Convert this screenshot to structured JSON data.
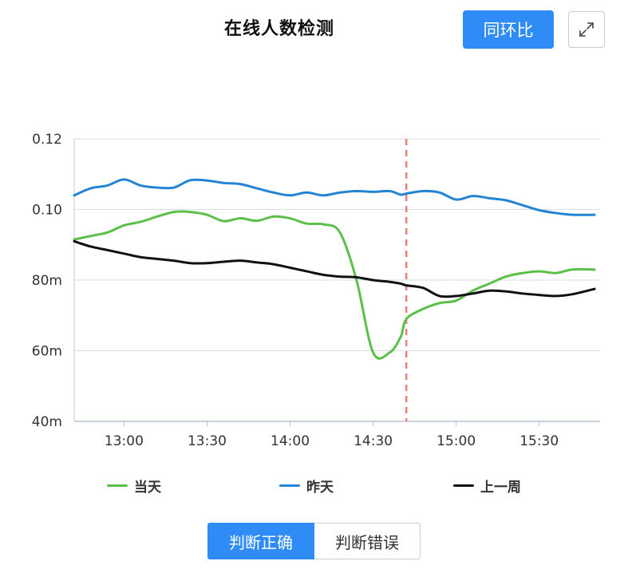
{
  "header": {
    "title": "在线人数检测",
    "compare_label": "同环比"
  },
  "colors": {
    "accent": "#2f8cf7"
  },
  "legend": [
    {
      "label": "当天",
      "color": "#5cbf4a"
    },
    {
      "label": "昨天",
      "color": "#2484d4"
    },
    {
      "label": "上一周",
      "color": "#111111"
    }
  ],
  "toggle": {
    "active_label": "判断正确",
    "inactive_label": "判断错误"
  },
  "chart_data": {
    "type": "line",
    "title": "",
    "xlabel": "",
    "ylabel": "",
    "x_tick_labels": [
      "13:00",
      "13:30",
      "14:00",
      "14:30",
      "15:00",
      "15:30"
    ],
    "y_tick_labels": [
      "0.12",
      "0.10",
      "80m",
      "60m",
      "40m"
    ],
    "x_ticks_minutes": [
      780,
      810,
      840,
      870,
      900,
      930
    ],
    "y_ticks": [
      0.12,
      0.1,
      0.08,
      0.06,
      0.04
    ],
    "xlim": [
      "12:42",
      "15:52"
    ],
    "ylim": [
      0.04,
      0.12
    ],
    "grid": "horizontal",
    "legend_position": "bottom",
    "marker_line": {
      "x": "14:42",
      "color": "#e8827a",
      "style": "dashed"
    },
    "x": [
      "12:42",
      "12:48",
      "12:54",
      "13:00",
      "13:06",
      "13:12",
      "13:18",
      "13:24",
      "13:30",
      "13:36",
      "13:42",
      "13:48",
      "13:54",
      "14:00",
      "14:06",
      "14:12",
      "14:18",
      "14:24",
      "14:30",
      "14:36",
      "14:40",
      "14:42",
      "14:48",
      "14:54",
      "15:00",
      "15:06",
      "15:12",
      "15:18",
      "15:24",
      "15:30",
      "15:36",
      "15:42",
      "15:50"
    ],
    "series": [
      {
        "name": "当天",
        "color": "#5cbf4a",
        "values": [
          0.0915,
          0.0925,
          0.0935,
          0.0955,
          0.0965,
          0.098,
          0.0993,
          0.0993,
          0.0985,
          0.0967,
          0.0975,
          0.0968,
          0.098,
          0.0975,
          0.096,
          0.0958,
          0.0935,
          0.08,
          0.0595,
          0.0595,
          0.064,
          0.069,
          0.0718,
          0.0735,
          0.0742,
          0.077,
          0.079,
          0.081,
          0.082,
          0.0825,
          0.082,
          0.083,
          0.083
        ]
      },
      {
        "name": "昨天",
        "color": "#2484d4",
        "values": [
          0.104,
          0.106,
          0.1068,
          0.1085,
          0.1068,
          0.1062,
          0.1062,
          0.1083,
          0.1082,
          0.1075,
          0.1072,
          0.106,
          0.1048,
          0.104,
          0.1048,
          0.104,
          0.1048,
          0.1052,
          0.105,
          0.1052,
          0.1042,
          0.1045,
          0.1052,
          0.1048,
          0.1028,
          0.1038,
          0.1032,
          0.1026,
          0.1012,
          0.0998,
          0.099,
          0.0985,
          0.0985
        ]
      },
      {
        "name": "上一周",
        "color": "#111111",
        "values": [
          0.091,
          0.0895,
          0.0885,
          0.0875,
          0.0865,
          0.086,
          0.0855,
          0.0848,
          0.0848,
          0.0852,
          0.0855,
          0.085,
          0.0845,
          0.0835,
          0.0825,
          0.0815,
          0.081,
          0.0808,
          0.08,
          0.0795,
          0.079,
          0.0785,
          0.0778,
          0.0755,
          0.0755,
          0.0762,
          0.077,
          0.0768,
          0.0762,
          0.0758,
          0.0755,
          0.076,
          0.0775
        ]
      }
    ]
  }
}
